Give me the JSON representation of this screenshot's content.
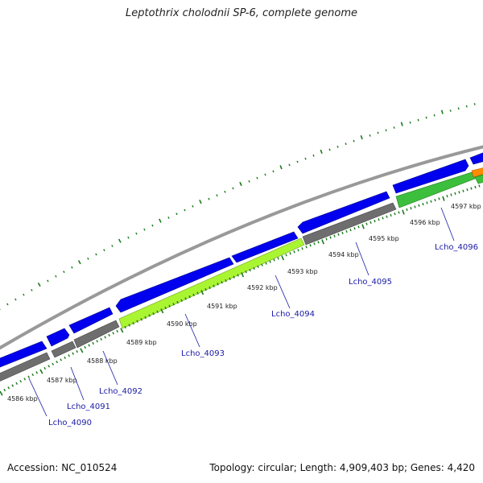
{
  "title": "Leptothrix cholodnii SP-6, complete genome",
  "footer": {
    "accession": "Accession: NC_010524",
    "summary": "Topology: circular; Length: 4,909,403 bp; Genes: 4,420"
  },
  "colors": {
    "forward_cds": "#0000ee",
    "reverse_gray": "#6e6e6e",
    "reverse_lightgreen": "#aaf532",
    "reverse_green": "#3cbf3c",
    "backbone": "#999999",
    "tick": "#1a7a1a",
    "label": "#1a1aa6",
    "orange": "#ff8c00"
  },
  "kbp_ticks": [
    "4586 kbp",
    "4587 kbp",
    "4588 kbp",
    "4589 kbp",
    "4590 kbp",
    "4591 kbp",
    "4592 kbp",
    "4593 kbp",
    "4594 kbp",
    "4595 kbp",
    "4596 kbp",
    "4597 kbp"
  ],
  "gene_labels": [
    "Lcho_4090",
    "Lcho_4091",
    "Lcho_4092",
    "Lcho_4093",
    "Lcho_4094",
    "Lcho_4095",
    "Lcho_4096"
  ]
}
